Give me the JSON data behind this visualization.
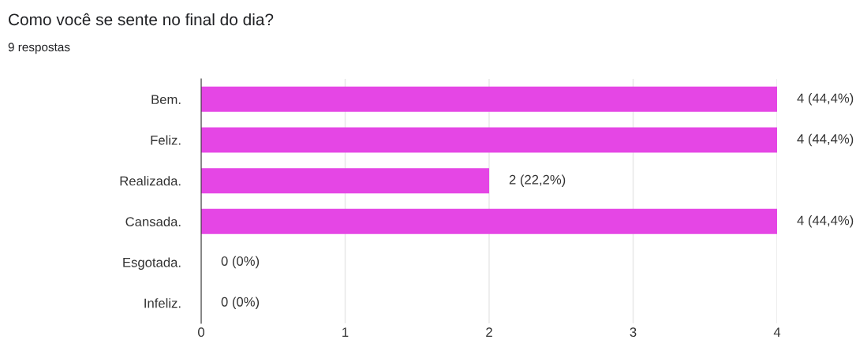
{
  "chart_data": {
    "type": "bar",
    "orientation": "horizontal",
    "title": "Como você se sente no final do dia?",
    "subtitle": "9 respostas",
    "categories": [
      "Bem.",
      "Feliz.",
      "Realizada.",
      "Cansada.",
      "Esgotada.",
      "Infeliz."
    ],
    "values": [
      4,
      4,
      2,
      4,
      0,
      0
    ],
    "color": "#e546e5",
    "value_labels": [
      "4 (44,4%)",
      "4 (44,4%)",
      "2 (22,2%)",
      "4 (44,4%)",
      "0 (0%)",
      "0 (0%)"
    ],
    "xlim": [
      0,
      4
    ],
    "xticks": [
      0,
      1,
      2,
      3,
      4
    ],
    "grid": "x"
  }
}
